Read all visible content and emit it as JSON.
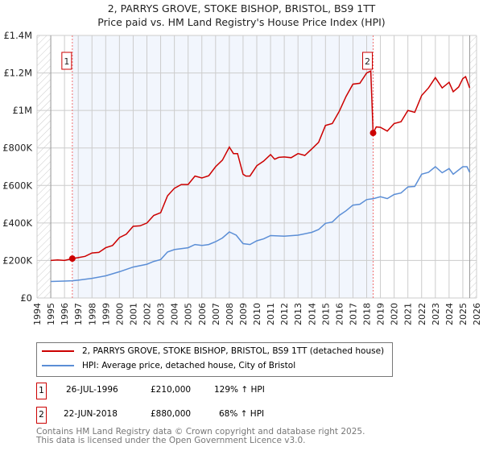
{
  "chart_data": {
    "type": "line",
    "title": "2, PARRYS GROVE, STOKE BISHOP, BRISTOL, BS9 1TT",
    "subtitle": "Price paid vs. HM Land Registry's House Price Index (HPI)",
    "xlim": [
      1994,
      2026
    ],
    "ylim": [
      0,
      1400000
    ],
    "x_ticks": [
      "1994",
      "1995",
      "1996",
      "1997",
      "1998",
      "1999",
      "2000",
      "2001",
      "2002",
      "2003",
      "2004",
      "2005",
      "2006",
      "2007",
      "2008",
      "2009",
      "2010",
      "2011",
      "2012",
      "2013",
      "2014",
      "2015",
      "2016",
      "2017",
      "2018",
      "2019",
      "2020",
      "2021",
      "2022",
      "2023",
      "2024",
      "2025",
      "2026"
    ],
    "y_ticks": [
      {
        "v": 0,
        "l": "£0"
      },
      {
        "v": 200000,
        "l": "£200K"
      },
      {
        "v": 400000,
        "l": "£400K"
      },
      {
        "v": 600000,
        "l": "£600K"
      },
      {
        "v": 800000,
        "l": "£800K"
      },
      {
        "v": 1000000,
        "l": "£1M"
      },
      {
        "v": 1200000,
        "l": "£1.2M"
      },
      {
        "v": 1400000,
        "l": "£1.4M"
      }
    ],
    "grid": true,
    "series": [
      {
        "name": "2, PARRYS GROVE, STOKE BISHOP, BRISTOL, BS9 1TT (detached house)",
        "color": "#cc0000",
        "x": [
          1995,
          1995.5,
          1996,
          1996.57,
          1997,
          1997.5,
          1998,
          1998.5,
          1999,
          1999.5,
          2000,
          2000.5,
          2001,
          2001.5,
          2002,
          2002.5,
          2003,
          2003.5,
          2004,
          2004.5,
          2005,
          2005.5,
          2006,
          2006.5,
          2007,
          2007.5,
          2008,
          2008.3,
          2008.6,
          2009,
          2009.2,
          2009.5,
          2010,
          2010.5,
          2011,
          2011.3,
          2011.6,
          2012,
          2012.5,
          2013,
          2013.5,
          2014,
          2014.5,
          2015,
          2015.5,
          2016,
          2016.5,
          2017,
          2017.5,
          2018,
          2018.3,
          2018.47,
          2018.7,
          2019,
          2019.5,
          2020,
          2020.5,
          2021,
          2021.5,
          2022,
          2022.5,
          2023,
          2023.5,
          2024,
          2024.3,
          2024.7,
          2025,
          2025.2,
          2025.5
        ],
        "y": [
          200000,
          203000,
          200000,
          210000,
          215000,
          222000,
          240000,
          243000,
          268000,
          280000,
          322000,
          340000,
          382000,
          385000,
          400000,
          440000,
          455000,
          545000,
          585000,
          605000,
          605000,
          650000,
          640000,
          652000,
          700000,
          735000,
          805000,
          770000,
          770000,
          660000,
          650000,
          650000,
          705000,
          730000,
          765000,
          740000,
          750000,
          752000,
          748000,
          770000,
          760000,
          795000,
          830000,
          920000,
          930000,
          995000,
          1075000,
          1140000,
          1145000,
          1200000,
          1210000,
          880000,
          912000,
          910000,
          890000,
          930000,
          940000,
          1000000,
          990000,
          1080000,
          1120000,
          1175000,
          1120000,
          1150000,
          1100000,
          1125000,
          1170000,
          1180000,
          1120000
        ]
      },
      {
        "name": "HPI: Average price, detached house, City of Bristol",
        "color": "#5b8ed6",
        "x": [
          1995,
          1996,
          1996.57,
          1997,
          1998,
          1999,
          2000,
          2001,
          2002,
          2002.5,
          2003,
          2003.5,
          2004,
          2005,
          2005.5,
          2006,
          2006.5,
          2007,
          2007.5,
          2008,
          2008.5,
          2009,
          2009.5,
          2010,
          2010.5,
          2011,
          2012,
          2013,
          2014,
          2014.5,
          2015,
          2015.5,
          2016,
          2016.5,
          2017,
          2017.5,
          2018,
          2018.5,
          2019,
          2019.5,
          2020,
          2020.5,
          2021,
          2021.5,
          2022,
          2022.5,
          2023,
          2023.5,
          2024,
          2024.3,
          2025,
          2025.3,
          2025.5
        ],
        "y": [
          88000,
          90000,
          92000,
          95000,
          105000,
          118000,
          140000,
          165000,
          180000,
          195000,
          205000,
          245000,
          258000,
          268000,
          285000,
          280000,
          285000,
          300000,
          320000,
          352000,
          335000,
          290000,
          285000,
          305000,
          315000,
          333000,
          330000,
          335000,
          350000,
          365000,
          398000,
          405000,
          440000,
          465000,
          495000,
          500000,
          525000,
          530000,
          540000,
          530000,
          552000,
          560000,
          592000,
          595000,
          660000,
          670000,
          700000,
          668000,
          690000,
          660000,
          700000,
          700000,
          670000
        ]
      }
    ],
    "annotations": [
      {
        "label": "1",
        "x": 1996.57,
        "y": 210000,
        "date": "26-JUL-1996",
        "price": "£210,000",
        "hpi": "129% ↑ HPI"
      },
      {
        "label": "2",
        "x": 2018.47,
        "y": 880000,
        "date": "22-JUN-2018",
        "price": "£880,000",
        "hpi": "68% ↑ HPI"
      }
    ],
    "hatched_before": 1995,
    "hatched_after": 2025.5
  },
  "footer": {
    "line1": "Contains HM Land Registry data © Crown copyright and database right 2025.",
    "line2": "This data is licensed under the Open Government Licence v3.0."
  }
}
